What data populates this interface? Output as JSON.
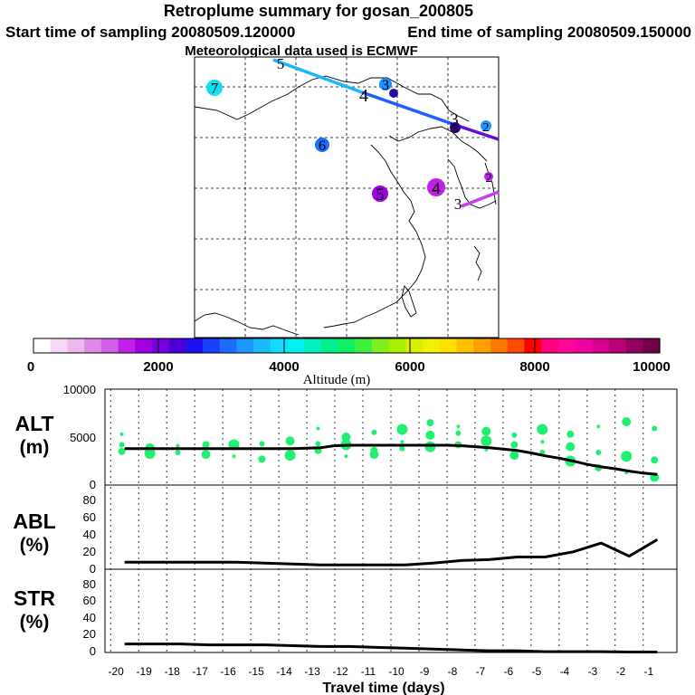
{
  "header": {
    "title": "Retroplume summary for gosan_200805",
    "start_label": "Start time of sampling 20080509.120000",
    "end_label": "End time of sampling 20080509.150000",
    "met_label": "Meteorological data used is ECMWF"
  },
  "colorbar": {
    "title": "Altitude (m)",
    "tick_labels": [
      "0",
      "2000",
      "4000",
      "6000",
      "8000",
      "10000"
    ],
    "colors": [
      "#ffffff",
      "#f6d8f6",
      "#eeb8ee",
      "#e08ae8",
      "#d060e8",
      "#c020e8",
      "#a000e0",
      "#7800e0",
      "#4c00d8",
      "#1e10f0",
      "#1840ff",
      "#1c6cff",
      "#1e96ff",
      "#18bcff",
      "#10dcff",
      "#00f0f0",
      "#00f0c0",
      "#00f090",
      "#10f060",
      "#40f040",
      "#80f020",
      "#a8f000",
      "#d8f000",
      "#f0f000",
      "#ffe000",
      "#ffc000",
      "#ffa000",
      "#ff7800",
      "#ff4800",
      "#ff0000",
      "#ff0080",
      "#ff0898",
      "#f000a0",
      "#d80090",
      "#b80078",
      "#900060",
      "#700048"
    ]
  },
  "map": {
    "markers": [
      {
        "label": "7",
        "color": "#10e0f0"
      },
      {
        "label": "3",
        "color": "#1e90ff"
      },
      {
        "label": "6",
        "color": "#1c6cff"
      },
      {
        "label": "5",
        "color": "#a000e0"
      },
      {
        "label": "4",
        "color": "#c020e8"
      },
      {
        "label": "3",
        "color": "#380080"
      },
      {
        "label": "2",
        "color": "#1e96ff"
      },
      {
        "label": "2",
        "color": "#c020e8"
      }
    ],
    "path_labels": [
      "5",
      "4",
      "3",
      "2",
      "3"
    ]
  },
  "panels": {
    "alt_label": "ALT",
    "alt_unit": "(m)",
    "abl_label": "ABL",
    "abl_unit": "(%)",
    "str_label": "STR",
    "str_unit": "(%)",
    "alt_ticks": [
      "10000",
      "5000",
      "0"
    ],
    "pct_ticks": [
      "80",
      "60",
      "40",
      "20",
      "0"
    ],
    "xlabel": "Travel time (days)"
  },
  "chart_data": [
    {
      "type": "line",
      "panel": "ALT",
      "title": "",
      "xlabel": "Travel time (days)",
      "ylabel": "ALT (m)",
      "xlim": [
        -20.2,
        0.2
      ],
      "ylim": [
        0,
        10000
      ],
      "x": [
        -19.5,
        -19,
        -18.5,
        -18,
        -17.5,
        -17,
        -16.5,
        -16,
        -15.5,
        -15,
        -14.5,
        -14,
        -13.5,
        -13,
        -12.5,
        -12,
        -11.5,
        -11,
        -10.5,
        -10,
        -9.5,
        -9,
        -8.5,
        -8,
        -7.5,
        -7,
        -6.5,
        -6,
        -5.5,
        -5,
        -4.5,
        -4,
        -3.5,
        -3,
        -2.5,
        -2,
        -1.5,
        -1,
        -0.5
      ],
      "series": [
        {
          "name": "mean altitude",
          "values": [
            3800,
            3800,
            3800,
            3800,
            3800,
            3800,
            3800,
            3800,
            3800,
            3800,
            3800,
            3800,
            3800,
            3850,
            3900,
            4100,
            4150,
            4150,
            4150,
            4150,
            4150,
            4150,
            4150,
            4150,
            4100,
            4000,
            3900,
            3750,
            3600,
            3350,
            3050,
            2800,
            2500,
            2150,
            1900,
            1700,
            1450,
            1250,
            1100
          ]
        }
      ],
      "scatter_series": [
        {
          "name": "particle altitudes",
          "points": [
            [
              -19.6,
              5300
            ],
            [
              -19.6,
              4200
            ],
            [
              -19.6,
              3500
            ],
            [
              -18.6,
              3900
            ],
            [
              -18.6,
              3300
            ],
            [
              -17.6,
              4100
            ],
            [
              -17.6,
              3400
            ],
            [
              -16.6,
              4200
            ],
            [
              -16.6,
              3200
            ],
            [
              -15.6,
              4200
            ],
            [
              -15.6,
              3000
            ],
            [
              -14.6,
              4300
            ],
            [
              -14.6,
              2700
            ],
            [
              -13.6,
              4600
            ],
            [
              -13.6,
              3100
            ],
            [
              -12.6,
              5900
            ],
            [
              -12.6,
              4300
            ],
            [
              -12.6,
              3600
            ],
            [
              -11.6,
              5000
            ],
            [
              -11.6,
              4200
            ],
            [
              -11.6,
              3000
            ],
            [
              -10.6,
              5500
            ],
            [
              -10.6,
              3600
            ],
            [
              -10.6,
              3200
            ],
            [
              -9.6,
              5800
            ],
            [
              -9.6,
              4500
            ],
            [
              -9.6,
              3800
            ],
            [
              -8.6,
              6500
            ],
            [
              -8.6,
              5200
            ],
            [
              -8.6,
              4000
            ],
            [
              -7.6,
              6100
            ],
            [
              -7.6,
              5400
            ],
            [
              -7.6,
              4200
            ],
            [
              -6.6,
              5600
            ],
            [
              -6.6,
              4600
            ],
            [
              -6.6,
              3700
            ],
            [
              -5.6,
              5200
            ],
            [
              -5.6,
              4200
            ],
            [
              -5.6,
              3100
            ],
            [
              -4.6,
              5800
            ],
            [
              -4.6,
              4500
            ],
            [
              -4.6,
              3400
            ],
            [
              -3.6,
              5300
            ],
            [
              -3.6,
              4000
            ],
            [
              -3.6,
              2500
            ],
            [
              -2.6,
              6100
            ],
            [
              -2.6,
              3400
            ],
            [
              -2.6,
              1800
            ],
            [
              -1.6,
              6600
            ],
            [
              -1.6,
              3000
            ],
            [
              -1.6,
              1300
            ],
            [
              -0.6,
              5900
            ],
            [
              -0.6,
              2600
            ],
            [
              -0.6,
              800
            ]
          ]
        }
      ]
    },
    {
      "type": "line",
      "panel": "ABL",
      "xlabel": "Travel time (days)",
      "ylabel": "ABL (%)",
      "xlim": [
        -20.2,
        0.2
      ],
      "ylim": [
        0,
        100
      ],
      "x": [
        -19.5,
        -18.5,
        -17.5,
        -16.5,
        -15.5,
        -14.5,
        -13.5,
        -12.5,
        -11.5,
        -10.5,
        -9.5,
        -8.5,
        -7.5,
        -6.5,
        -5.5,
        -4.5,
        -3.5,
        -2.5,
        -1.5,
        -0.5
      ],
      "series": [
        {
          "name": "ABL fraction",
          "values": [
            8,
            8,
            8,
            8,
            8,
            7,
            6,
            5,
            5,
            5,
            5,
            7,
            10,
            11,
            14,
            14,
            20,
            30,
            15,
            34
          ]
        }
      ]
    },
    {
      "type": "line",
      "panel": "STR",
      "xlabel": "Travel time (days)",
      "ylabel": "STR (%)",
      "xlim": [
        -20.2,
        0.2
      ],
      "ylim": [
        0,
        100
      ],
      "x": [
        -19.5,
        -18.5,
        -17.5,
        -16.5,
        -15.5,
        -14.5,
        -13.5,
        -12.5,
        -11.5,
        -10.5,
        -9.5,
        -8.5,
        -7.5,
        -6.5,
        -5.5,
        -4.5,
        -3.5,
        -2.5,
        -1.5,
        -0.5
      ],
      "series": [
        {
          "name": "STR fraction",
          "values": [
            10,
            10,
            10,
            9,
            9,
            9,
            8,
            7,
            7,
            6,
            5,
            4,
            3,
            2,
            2,
            1,
            1,
            1,
            0.5,
            0.5
          ]
        }
      ]
    }
  ],
  "x_tick_labels": [
    "-20",
    "-19",
    "-18",
    "-17",
    "-16",
    "-15",
    "-14",
    "-13",
    "-12",
    "-11",
    "-10",
    "-9",
    "-8",
    "-7",
    "-6",
    "-5",
    "-4",
    "-3",
    "-2",
    "-1"
  ]
}
